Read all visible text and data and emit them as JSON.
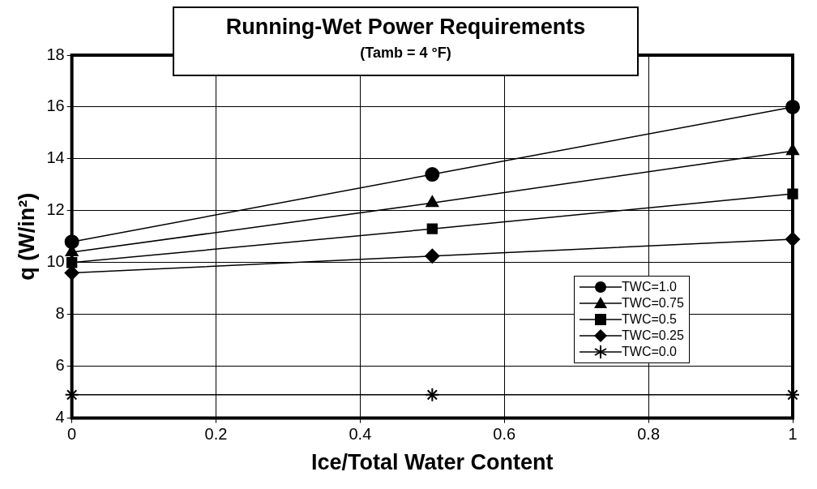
{
  "chart_data": {
    "type": "line",
    "title": "Running-Wet Power Requirements",
    "subtitle": "(Tamb = 4 °F)",
    "xlabel": "Ice/Total Water Content",
    "ylabel": "q (W/in²)",
    "x": [
      0,
      0.5,
      1
    ],
    "xlim": [
      0,
      1
    ],
    "xticks": [
      0,
      0.2,
      0.4,
      0.6,
      0.8,
      1
    ],
    "ylim": [
      4,
      18
    ],
    "yticks": [
      4,
      6,
      8,
      10,
      12,
      14,
      16,
      18
    ],
    "grid": true,
    "legend": "right",
    "line_style": "solid",
    "series": [
      {
        "name": "TWC=1.0",
        "color": "#000000",
        "marker": "circle",
        "values": [
          10.8,
          13.4,
          16.0
        ]
      },
      {
        "name": "TWC=0.75",
        "color": "#000000",
        "marker": "triangle",
        "values": [
          10.4,
          12.3,
          14.3
        ]
      },
      {
        "name": "TWC=0.5",
        "color": "#000000",
        "marker": "square",
        "values": [
          10.0,
          11.3,
          12.65
        ]
      },
      {
        "name": "TWC=0.25",
        "color": "#000000",
        "marker": "diamond",
        "values": [
          9.6,
          10.25,
          10.9
        ]
      },
      {
        "name": "TWC=0.0",
        "color": "#000000",
        "marker": "cross",
        "values": [
          4.9,
          4.9,
          4.9
        ]
      }
    ]
  }
}
